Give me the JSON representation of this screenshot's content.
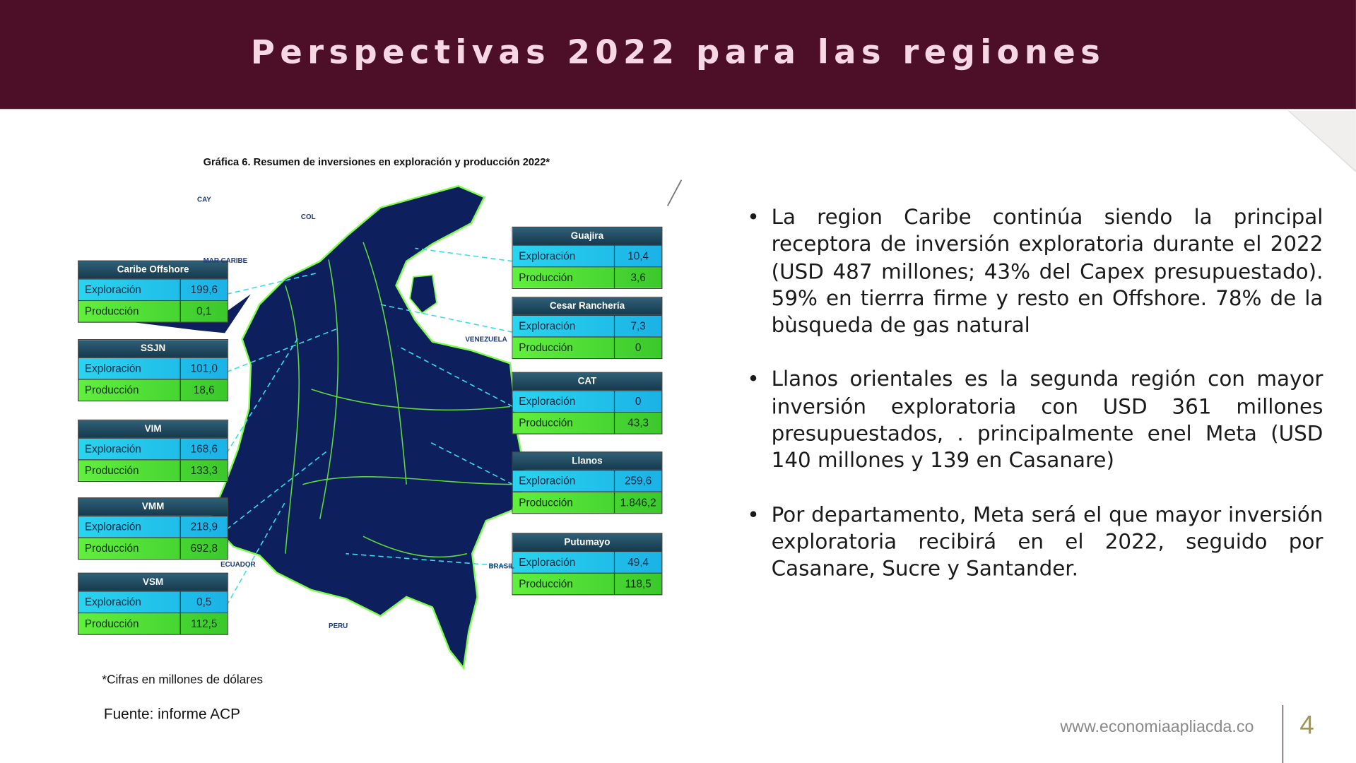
{
  "header": {
    "title": "Perspectivas 2022 para las regiones"
  },
  "figure": {
    "title": "Gráfica 6. Resumen de inversiones en exploración y producción 2022*",
    "map_labels": [
      "CAY",
      "COL",
      "MAR CARIBE",
      "VENEZUELA",
      "ECUADOR",
      "BRASIL",
      "PERU"
    ],
    "regions": [
      {
        "name": "Caribe Offshore",
        "rows": [
          [
            "Exploración",
            "199,6"
          ],
          [
            "Producción",
            "0,1"
          ]
        ]
      },
      {
        "name": "SSJN",
        "rows": [
          [
            "Exploración",
            "101,0"
          ],
          [
            "Producción",
            "18,6"
          ]
        ]
      },
      {
        "name": "VIM",
        "rows": [
          [
            "Exploración",
            "168,6"
          ],
          [
            "Producción",
            "133,3"
          ]
        ]
      },
      {
        "name": "VMM",
        "rows": [
          [
            "Exploración",
            "218,9"
          ],
          [
            "Producción",
            "692,8"
          ]
        ]
      },
      {
        "name": "VSM",
        "rows": [
          [
            "Exploración",
            "0,5"
          ],
          [
            "Producción",
            "112,5"
          ]
        ]
      },
      {
        "name": "Guajira",
        "rows": [
          [
            "Exploración",
            "10,4"
          ],
          [
            "Producción",
            "3,6"
          ]
        ]
      },
      {
        "name": "Cesar Ranchería",
        "rows": [
          [
            "Exploración",
            "7,3"
          ],
          [
            "Producción",
            "0"
          ]
        ]
      },
      {
        "name": "CAT",
        "rows": [
          [
            "Exploración",
            "0"
          ],
          [
            "Producción",
            "43,3"
          ]
        ]
      },
      {
        "name": "Llanos",
        "rows": [
          [
            "Exploración",
            "259,6"
          ],
          [
            "Producción",
            "1.846,2"
          ]
        ]
      },
      {
        "name": "Putumayo",
        "rows": [
          [
            "Exploración",
            "49,4"
          ],
          [
            "Producción",
            "118,5"
          ]
        ]
      }
    ],
    "note": "*Cifras en millones de dólares"
  },
  "source": "Fuente: informe ACP",
  "bullets": [
    "La region Caribe continúa siendo la principal receptora de inversión exploratoria durante el 2022 (USD 487 millones; 43% del Capex presupuestado). 59% en tierrra firme y resto en Offshore. 78% de la bùsqueda de gas natural",
    "Llanos orientales es la segunda región con mayor inversión exploratoria con USD 361 millones presupuestados, . principalmente enel Meta (USD 140 millones y 139 en Casanare)",
    "Por departamento, Meta será el que mayor inversión exploratoria recibirá en el 2022, seguido por Casanare, Sucre y Santander."
  ],
  "footer": {
    "website": "www.economiaapliacda.co",
    "page": 4
  }
}
